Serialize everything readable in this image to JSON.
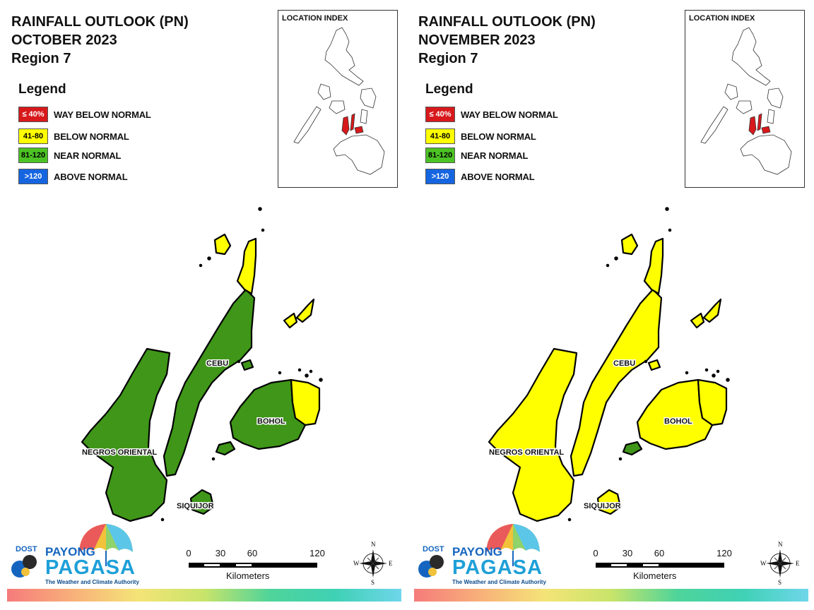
{
  "panels": [
    {
      "title_line1": "RAINFALL OUTLOOK (PN)",
      "title_line2": "OCTOBER 2023",
      "title_line3": "Region 7",
      "province_categories": {
        "NEGROS ORIENTAL": "near_normal",
        "CEBU": "near_normal",
        "CEBU_NORTH_TIP": "below_normal",
        "BOHOL": "near_normal",
        "BOHOL_EAST": "below_normal",
        "SIQUIJOR": "near_normal",
        "CAMOTES": "below_normal",
        "BANTAYAN": "below_normal",
        "SW_BOHOL_TIP": "near_normal"
      }
    },
    {
      "title_line1": "RAINFALL OUTLOOK (PN)",
      "title_line2": "NOVEMBER 2023",
      "title_line3": "Region 7",
      "province_categories": {
        "NEGROS ORIENTAL": "below_normal",
        "CEBU": "below_normal",
        "CEBU_NORTH_TIP": "below_normal",
        "BOHOL": "below_normal",
        "BOHOL_EAST": "below_normal",
        "SIQUIJOR": "below_normal",
        "CAMOTES": "below_normal",
        "BANTAYAN": "below_normal",
        "SW_BOHOL_TIP": "near_normal"
      }
    }
  ],
  "legend": {
    "title": "Legend",
    "items": [
      {
        "key": "way_below_normal",
        "range": "≤ 40%",
        "label": "WAY BELOW NORMAL",
        "color": "#d7191c",
        "text_color": "#ffffff"
      },
      {
        "key": "below_normal",
        "range": "41-80",
        "label": "BELOW NORMAL",
        "color": "#ffff00",
        "text_color": "#000000"
      },
      {
        "key": "near_normal",
        "range": "81-120",
        "label": "NEAR NORMAL",
        "color": "#4cc324",
        "text_color": "#000000"
      },
      {
        "key": "above_normal",
        "range": ">120",
        "label": "ABOVE NORMAL",
        "color": "#1565e0",
        "text_color": "#ffffff"
      }
    ]
  },
  "map_colors": {
    "near_normal": "#3f9618",
    "below_normal": "#ffff00",
    "highlight": "#d7191c"
  },
  "location_index": {
    "label": "LOCATION INDEX"
  },
  "labels": {
    "negros": "NEGROS ORIENTAL",
    "cebu": "CEBU",
    "bohol": "BOHOL",
    "siquijor": "SIQUIJOR"
  },
  "scale": {
    "ticks": [
      "0",
      "30",
      "60",
      "120"
    ],
    "units": "Kilometers"
  },
  "compass": {
    "n": "N",
    "s": "S",
    "e": "E",
    "w": "W"
  },
  "logo": {
    "dost": "DOST",
    "payong": "PAYONG",
    "pagasa": "PAGASA",
    "tagline": "The Weather and Climate Authority"
  }
}
